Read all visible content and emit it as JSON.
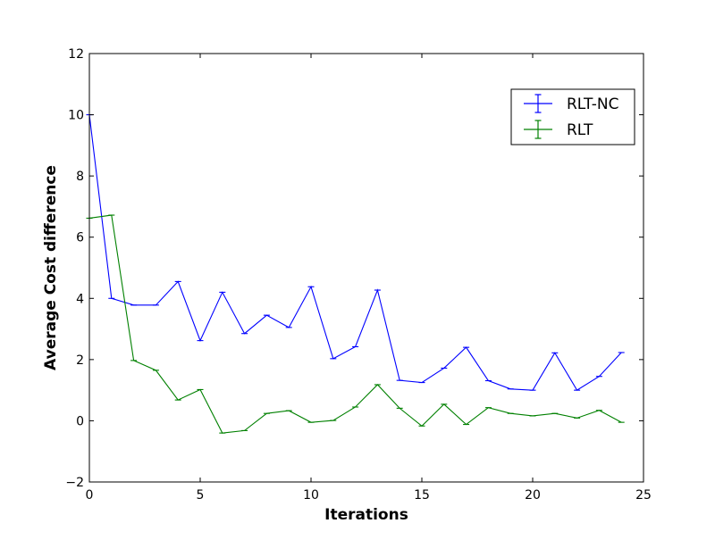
{
  "chart_data": {
    "type": "line",
    "title": "",
    "xlabel": "Iterations",
    "ylabel": "Average Cost difference",
    "xlim": [
      0,
      25
    ],
    "ylim": [
      -2,
      12
    ],
    "xticks": [
      0,
      5,
      10,
      15,
      20,
      25
    ],
    "yticks": [
      -2,
      0,
      2,
      4,
      6,
      8,
      10,
      12
    ],
    "xtick_labels": [
      "0",
      "5",
      "10",
      "15",
      "20",
      "25"
    ],
    "ytick_labels": [
      "−2",
      "0",
      "2",
      "4",
      "6",
      "8",
      "10",
      "12"
    ],
    "grid": false,
    "legend_position": "upper-right",
    "error_bars": true,
    "series": [
      {
        "name": "RLT-NC",
        "color": "#0000ff",
        "x": [
          0,
          1,
          2,
          3,
          4,
          5,
          6,
          7,
          8,
          9,
          10,
          11,
          12,
          13,
          14,
          15,
          16,
          17,
          18,
          19,
          20,
          21,
          22,
          23,
          24
        ],
        "values": [
          10.0,
          4.0,
          3.78,
          3.78,
          4.55,
          2.62,
          4.2,
          2.85,
          3.45,
          3.05,
          4.38,
          2.03,
          2.42,
          4.27,
          1.32,
          1.25,
          1.72,
          2.4,
          1.31,
          1.04,
          1.0,
          2.22,
          1.0,
          1.45,
          2.23
        ]
      },
      {
        "name": "RLT",
        "color": "#008000",
        "x": [
          0,
          1,
          2,
          3,
          4,
          5,
          6,
          7,
          8,
          9,
          10,
          11,
          12,
          13,
          14,
          15,
          16,
          17,
          18,
          19,
          20,
          21,
          22,
          23,
          24
        ],
        "values": [
          6.62,
          6.72,
          1.97,
          1.65,
          0.68,
          1.02,
          -0.4,
          -0.32,
          0.24,
          0.33,
          -0.05,
          0.01,
          0.45,
          1.18,
          0.41,
          -0.17,
          0.54,
          -0.12,
          0.43,
          0.24,
          0.16,
          0.24,
          0.09,
          0.34,
          -0.05
        ]
      }
    ]
  }
}
